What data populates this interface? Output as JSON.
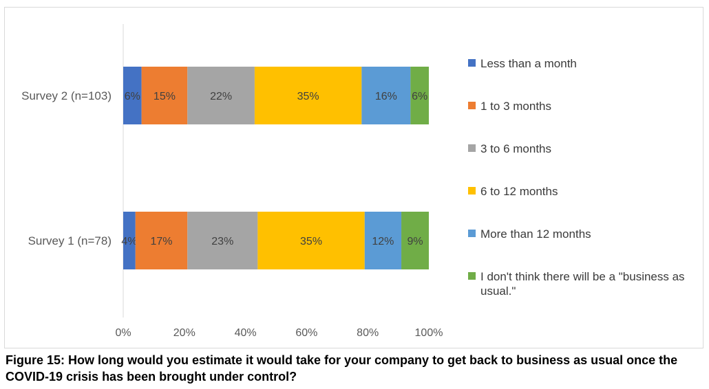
{
  "chart_data": {
    "type": "bar",
    "orientation": "horizontal",
    "stacked": "percent",
    "categories": [
      "Survey 2 (n=103)",
      "Survey 1 (n=78)"
    ],
    "series": [
      {
        "name": "Less than a month",
        "color": "#4472c4",
        "values": [
          6,
          4
        ],
        "labels": [
          "6%",
          "4%"
        ]
      },
      {
        "name": "1 to 3 months",
        "color": "#ed7d31",
        "values": [
          15,
          17
        ],
        "labels": [
          "15%",
          "17%"
        ]
      },
      {
        "name": "3 to 6 months",
        "color": "#a5a5a5",
        "values": [
          22,
          23
        ],
        "labels": [
          "22%",
          "23%"
        ]
      },
      {
        "name": "6 to 12 months",
        "color": "#ffc000",
        "values": [
          35,
          35
        ],
        "labels": [
          "35%",
          "35%"
        ]
      },
      {
        "name": "More than 12 months",
        "color": "#5b9bd5",
        "values": [
          16,
          12
        ],
        "labels": [
          "16%",
          "12%"
        ]
      },
      {
        "name": "I don't think there will be a \"business as usual.\"",
        "color": "#70ad47",
        "values": [
          6,
          9
        ],
        "labels": [
          "6%",
          "9%"
        ]
      }
    ],
    "xlim": [
      0,
      100
    ],
    "x_ticks": [
      "0%",
      "20%",
      "40%",
      "60%",
      "80%",
      "100%"
    ],
    "grid": false,
    "legend": "right"
  },
  "caption": "Figure 15: How long would you estimate it would take for your company to get back to business as usual once the COVID-19 crisis has been brought under control?"
}
